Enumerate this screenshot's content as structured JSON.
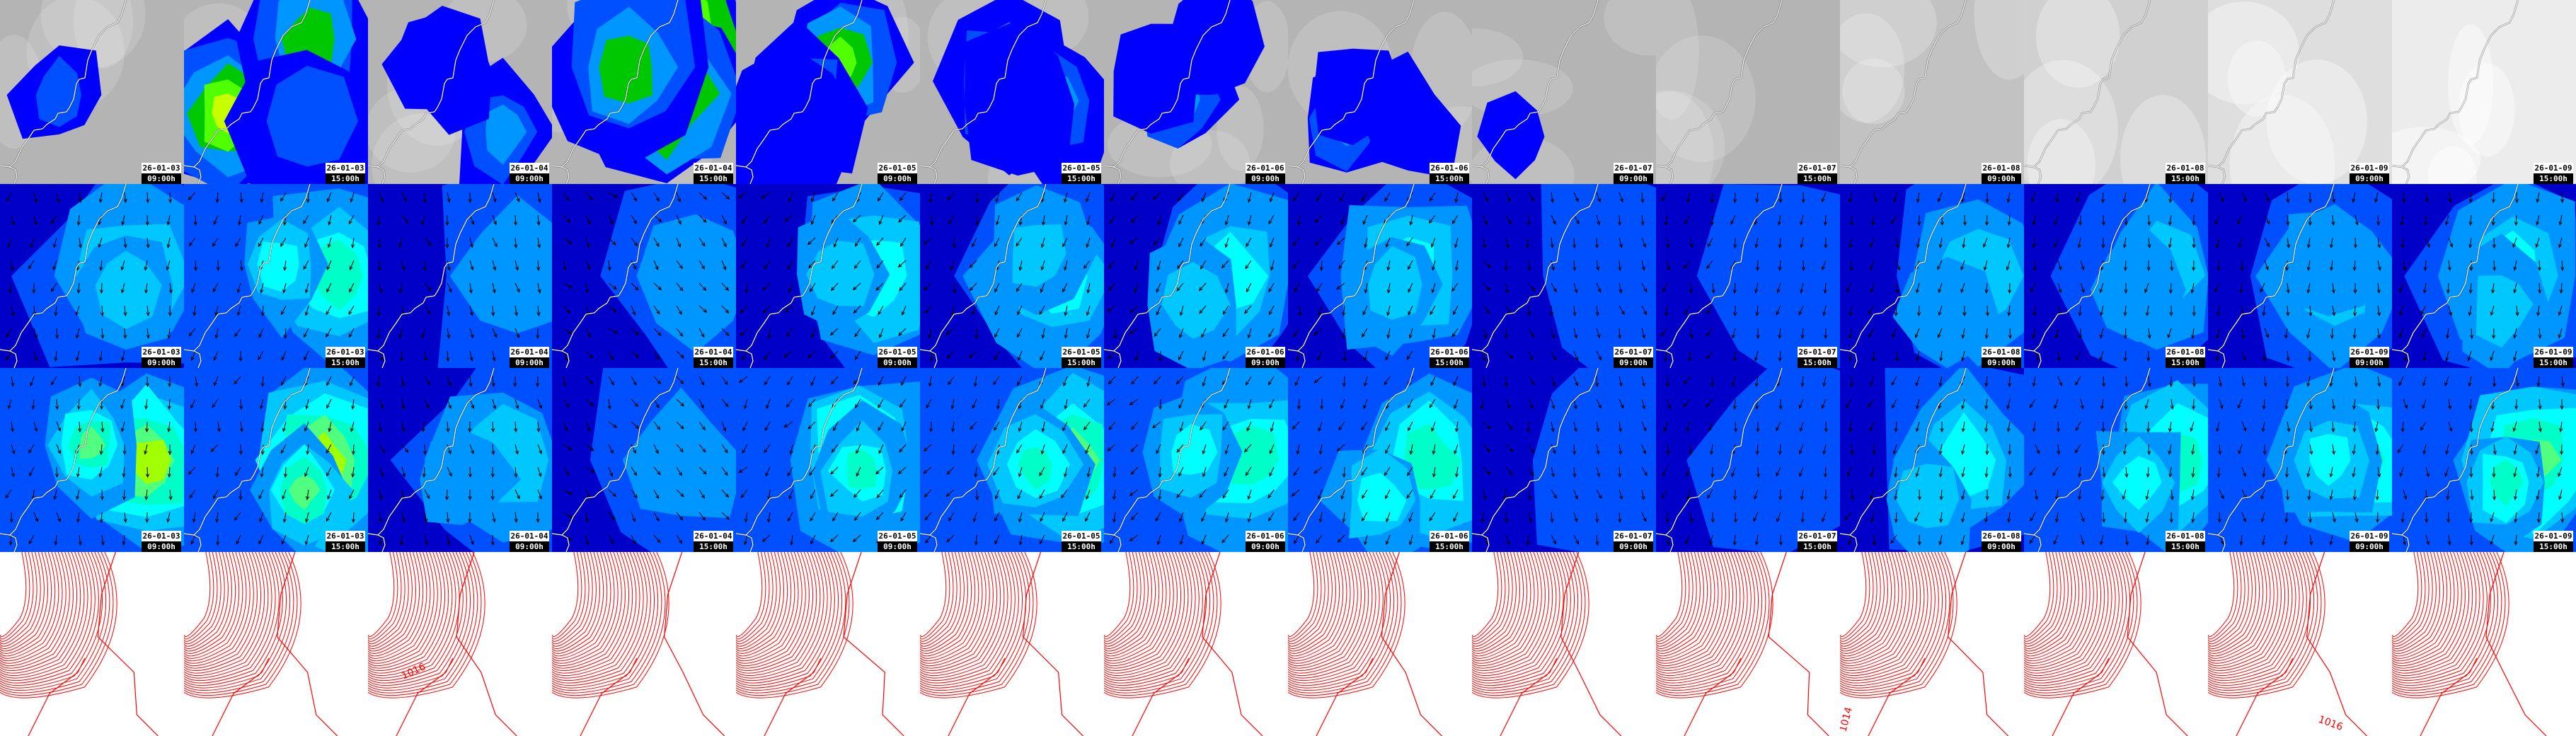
{
  "columns": [
    {
      "date": "26-01-03",
      "time": "09:00h"
    },
    {
      "date": "26-01-03",
      "time": "15:00h"
    },
    {
      "date": "26-01-04",
      "time": "09:00h"
    },
    {
      "date": "26-01-04",
      "time": "15:00h"
    },
    {
      "date": "26-01-05",
      "time": "09:00h"
    },
    {
      "date": "26-01-05",
      "time": "15:00h"
    },
    {
      "date": "26-01-06",
      "time": "09:00h"
    },
    {
      "date": "26-01-06",
      "time": "15:00h"
    },
    {
      "date": "26-01-07",
      "time": "09:00h"
    },
    {
      "date": "26-01-07",
      "time": "15:00h"
    },
    {
      "date": "26-01-08",
      "time": "09:00h"
    },
    {
      "date": "26-01-08",
      "time": "15:00h"
    },
    {
      "date": "26-01-09",
      "time": "09:00h"
    },
    {
      "date": "26-01-09",
      "time": "15:00h"
    }
  ],
  "rows": [
    {
      "type": "precipitation-map",
      "labeled": true
    },
    {
      "type": "wind-map",
      "labeled": true
    },
    {
      "type": "gust-map",
      "labeled": true
    },
    {
      "type": "pressure-contours",
      "labeled": false
    }
  ],
  "contour_labels": [
    {
      "column": 2,
      "text": "1016"
    },
    {
      "column": 10,
      "text": "1014"
    },
    {
      "column": 12,
      "text": "1016"
    }
  ],
  "colors": {
    "land_gray": "#b4b4b4",
    "precip_scale": [
      "#0000ff",
      "#0050ff",
      "#0096ff",
      "#00c800",
      "#50ff00",
      "#c8ff00",
      "#ffff00",
      "#ffa000",
      "#ff0000"
    ],
    "wind_scale": [
      "#0000c8",
      "#0050ff",
      "#0096ff",
      "#00c8ff",
      "#00ffff",
      "#00ffc8",
      "#50ff80",
      "#a0ff00",
      "#d0ff00"
    ],
    "coastline": "#ffffff",
    "arrow": "#000000",
    "contour": "#ff0000"
  }
}
